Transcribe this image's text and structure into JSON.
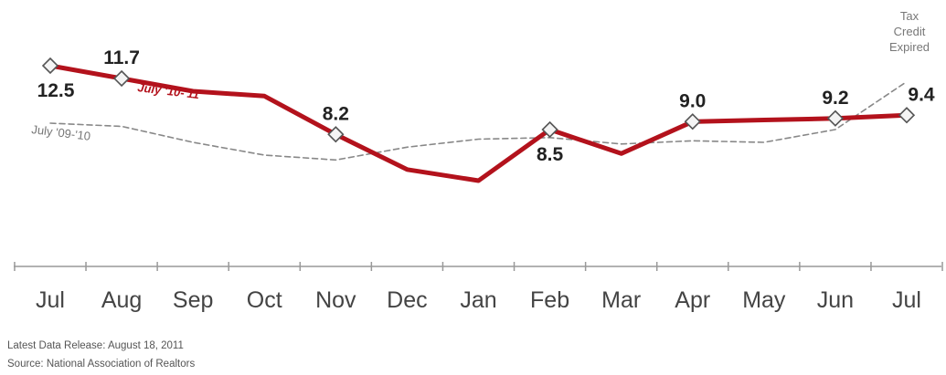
{
  "chart_data": {
    "type": "line",
    "categories": [
      "Jul",
      "Aug",
      "Sep",
      "Oct",
      "Nov",
      "Dec",
      "Jan",
      "Feb",
      "Mar",
      "Apr",
      "May",
      "Jun",
      "Jul"
    ],
    "series": [
      {
        "name": "July '10-'11",
        "values": [
          12.5,
          11.7,
          10.9,
          10.6,
          8.2,
          6.0,
          5.3,
          8.5,
          7.0,
          9.0,
          9.1,
          9.2,
          9.4
        ],
        "labels": [
          "12.5",
          "11.7",
          null,
          null,
          "8.2",
          null,
          null,
          "8.5",
          null,
          "9.0",
          null,
          "9.2",
          "9.4"
        ],
        "markers": [
          true,
          true,
          false,
          false,
          true,
          false,
          false,
          true,
          false,
          true,
          false,
          true,
          true
        ],
        "color": "#b3121c",
        "style": "solid"
      },
      {
        "name": "July '09-'10",
        "values": [
          8.9,
          8.7,
          7.7,
          6.9,
          6.6,
          7.4,
          7.9,
          8.0,
          7.6,
          7.8,
          7.7,
          8.5,
          11.5
        ],
        "color": "#888888",
        "style": "dashed"
      }
    ],
    "annotation": "Tax Credit Expired",
    "grid": false,
    "legend": "inline"
  },
  "footer": {
    "release": "Latest Data Release:  August 18, 2011",
    "source": "Source: National Association of Realtors"
  }
}
